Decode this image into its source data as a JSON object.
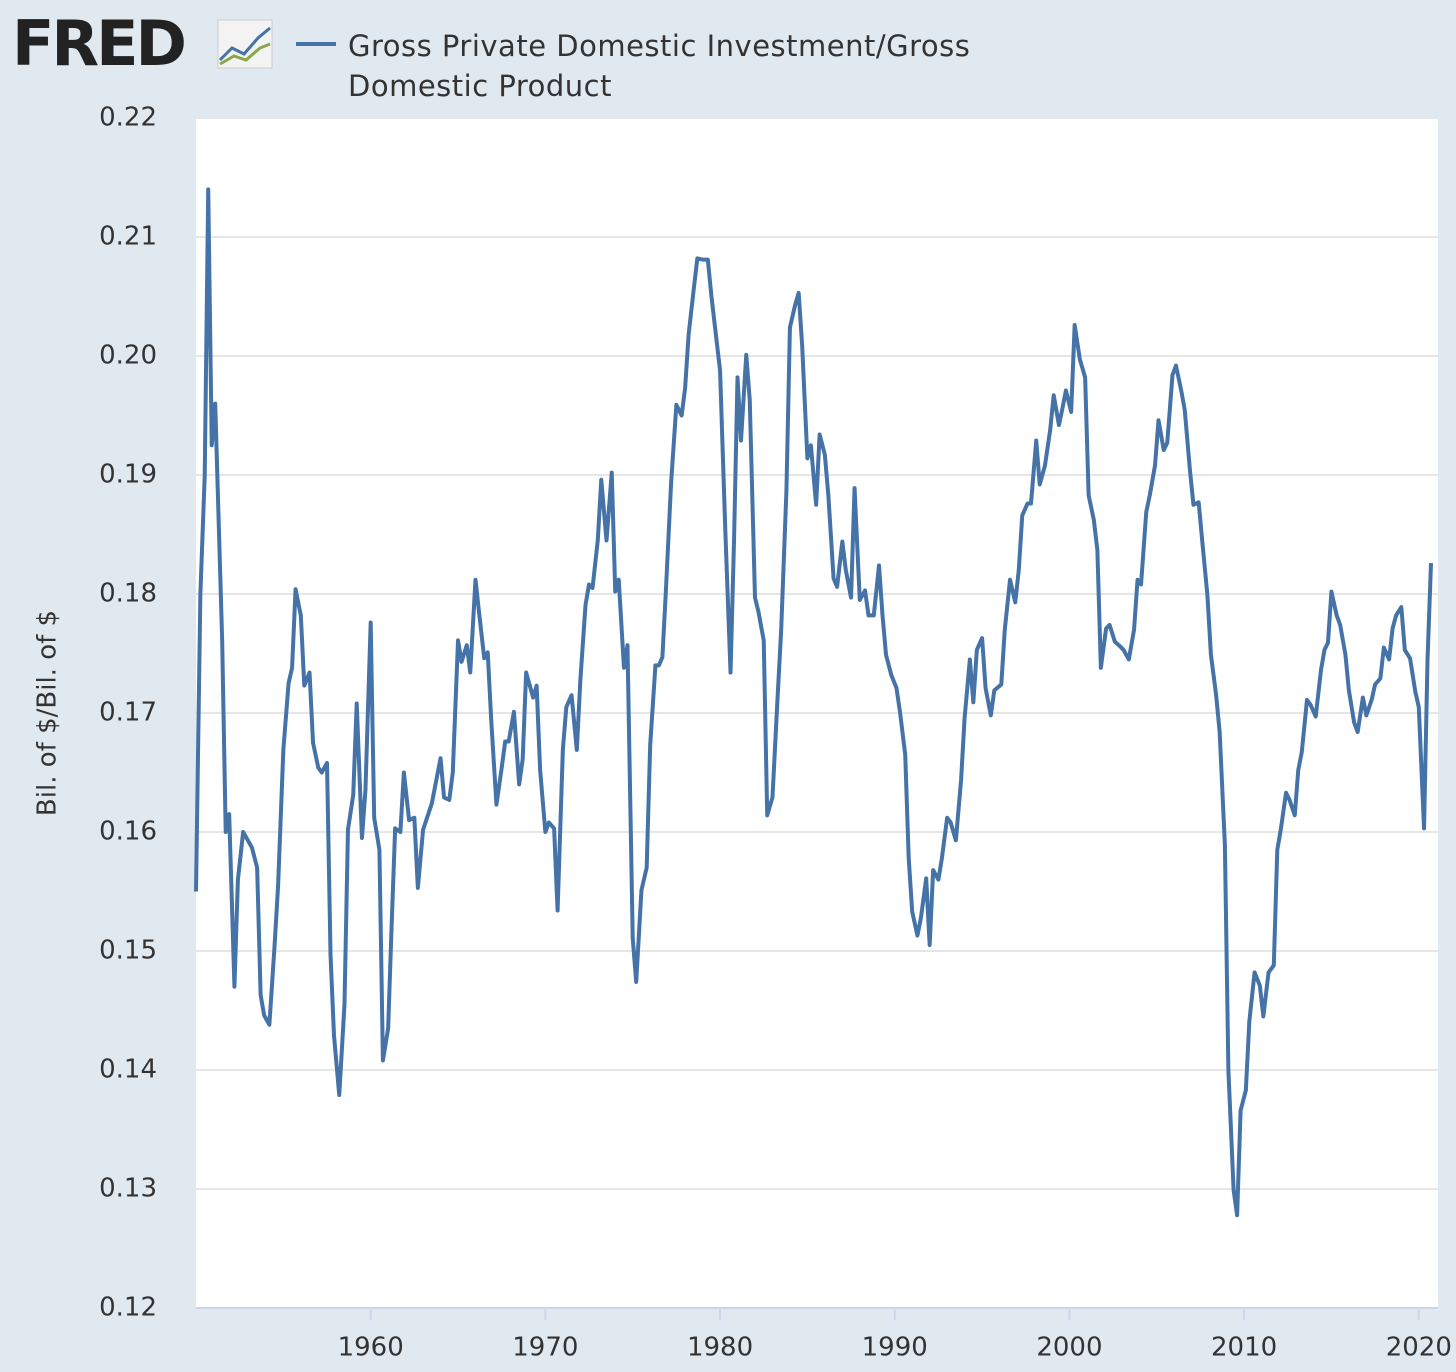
{
  "logo": "FRED",
  "chart_data": {
    "type": "line",
    "y_label": "Bil. of $/Bil. of $",
    "series": [
      {
        "name": "Gross Private Domestic Investment/Gross Domestic Product",
        "color": "#4572a7",
        "x": [
          1950.0,
          1950.25,
          1950.5,
          1950.7,
          1950.9,
          1951.1,
          1951.5,
          1951.7,
          1951.9,
          1952.2,
          1952.4,
          1952.7,
          1953.2,
          1953.5,
          1953.7,
          1953.9,
          1954.2,
          1954.5,
          1954.7,
          1955.0,
          1955.3,
          1955.5,
          1955.7,
          1956.0,
          1956.2,
          1956.5,
          1956.7,
          1957.0,
          1957.2,
          1957.5,
          1957.7,
          1957.9,
          1958.2,
          1958.5,
          1958.7,
          1959.0,
          1959.2,
          1959.5,
          1959.7,
          1960.0,
          1960.2,
          1960.5,
          1960.7,
          1961.0,
          1961.2,
          1961.4,
          1961.7,
          1961.9,
          1962.2,
          1962.5,
          1962.7,
          1963.0,
          1963.5,
          1964.0,
          1964.2,
          1964.5,
          1964.7,
          1965.0,
          1965.2,
          1965.5,
          1965.7,
          1966.0,
          1966.2,
          1966.5,
          1966.7,
          1966.9,
          1967.2,
          1967.5,
          1967.7,
          1967.9,
          1968.2,
          1968.5,
          1968.7,
          1968.9,
          1969.3,
          1969.5,
          1969.7,
          1970.0,
          1970.2,
          1970.5,
          1970.7,
          1971.0,
          1971.2,
          1971.5,
          1971.8,
          1972.0,
          1972.3,
          1972.5,
          1972.7,
          1973.0,
          1973.2,
          1973.5,
          1973.8,
          1974.0,
          1974.2,
          1974.5,
          1974.7,
          1975.0,
          1975.2,
          1975.5,
          1975.8,
          1976.0,
          1976.3,
          1976.5,
          1976.7,
          1976.9,
          1977.2,
          1977.5,
          1977.8,
          1978.0,
          1978.2,
          1978.5,
          1978.7,
          1979.0,
          1979.3,
          1979.5,
          1979.8,
          1980.0,
          1980.3,
          1980.6,
          1980.8,
          1981.0,
          1981.2,
          1981.5,
          1981.7,
          1982.0,
          1982.2,
          1982.5,
          1982.7,
          1983.0,
          1983.3,
          1983.5,
          1983.8,
          1984.0,
          1984.3,
          1984.5,
          1984.7,
          1985.0,
          1985.2,
          1985.5,
          1985.7,
          1986.0,
          1986.2,
          1986.5,
          1986.7,
          1987.0,
          1987.2,
          1987.5,
          1987.7,
          1988.0,
          1988.3,
          1988.5,
          1988.8,
          1989.1,
          1989.3,
          1989.5,
          1989.8,
          1990.1,
          1990.3,
          1990.6,
          1990.8,
          1991.0,
          1991.3,
          1991.5,
          1991.8,
          1992.0,
          1992.2,
          1992.5,
          1992.7,
          1993.0,
          1993.2,
          1993.5,
          1993.8,
          1994.0,
          1994.3,
          1994.5,
          1994.7,
          1995.0,
          1995.2,
          1995.5,
          1995.7,
          1996.1,
          1996.3,
          1996.6,
          1996.9,
          1997.1,
          1997.3,
          1997.6,
          1997.8,
          1998.1,
          1998.3,
          1998.6,
          1998.9,
          1999.1,
          1999.4,
          1999.6,
          1999.8,
          2000.1,
          2000.3,
          2000.6,
          2000.9,
          2001.1,
          2001.4,
          2001.6,
          2001.8,
          2002.1,
          2002.3,
          2002.6,
          2002.9,
          2003.1,
          2003.4,
          2003.7,
          2003.9,
          2004.1,
          2004.4,
          2004.6,
          2004.9,
          2005.1,
          2005.4,
          2005.6,
          2005.9,
          2006.1,
          2006.4,
          2006.6,
          2006.9,
          2007.1,
          2007.4,
          2007.6,
          2007.9,
          2008.1,
          2008.4,
          2008.6,
          2008.9,
          2009.1,
          2009.4,
          2009.6,
          2009.8,
          2010.1,
          2010.3,
          2010.6,
          2010.9,
          2011.1,
          2011.4,
          2011.7,
          2011.9,
          2012.1,
          2012.4,
          2012.6,
          2012.9,
          2013.1,
          2013.3,
          2013.6,
          2013.8,
          2014.1,
          2014.4,
          2014.6,
          2014.8,
          2015.0,
          2015.3,
          2015.5,
          2015.8,
          2016.0,
          2016.3,
          2016.5,
          2016.8,
          2017.0,
          2017.3,
          2017.5,
          2017.8,
          2018.0,
          2018.3,
          2018.5,
          2018.7,
          2019.0,
          2019.2,
          2019.5,
          2019.8,
          2020.0,
          2020.3,
          2020.5,
          2020.7
        ],
        "values": [
          0.155,
          0.18,
          0.19,
          0.214,
          0.1925,
          0.196,
          0.176,
          0.16,
          0.1615,
          0.147,
          0.156,
          0.16,
          0.1587,
          0.157,
          0.1463,
          0.1446,
          0.1438,
          0.1505,
          0.1555,
          0.1669,
          0.1725,
          0.1738,
          0.1804,
          0.1782,
          0.1723,
          0.1734,
          0.1675,
          0.1654,
          0.165,
          0.1658,
          0.1497,
          0.1429,
          0.1379,
          0.1455,
          0.1602,
          0.1631,
          0.1708,
          0.1595,
          0.1635,
          0.1776,
          0.1612,
          0.1585,
          0.1408,
          0.1435,
          0.1522,
          0.1603,
          0.16,
          0.165,
          0.161,
          0.1612,
          0.1553,
          0.1602,
          0.1624,
          0.1662,
          0.1629,
          0.1627,
          0.165,
          0.1761,
          0.1743,
          0.1757,
          0.1734,
          0.1812,
          0.1785,
          0.1746,
          0.1751,
          0.1694,
          0.1623,
          0.1654,
          0.1676,
          0.1676,
          0.1701,
          0.164,
          0.1661,
          0.1734,
          0.1713,
          0.1723,
          0.1652,
          0.16,
          0.1608,
          0.1603,
          0.1534,
          0.1669,
          0.1705,
          0.1715,
          0.1669,
          0.1727,
          0.1791,
          0.1808,
          0.1805,
          0.1845,
          0.1896,
          0.1845,
          0.1902,
          0.1802,
          0.1812,
          0.1738,
          0.1757,
          0.1511,
          0.1474,
          0.1551,
          0.157,
          0.1673,
          0.174,
          0.174,
          0.1747,
          0.1803,
          0.1894,
          0.1959,
          0.195,
          0.1973,
          0.2018,
          0.2057,
          0.2082,
          0.2081,
          0.2081,
          0.2051,
          0.2013,
          0.1988,
          0.1854,
          0.1734,
          0.1845,
          0.1982,
          0.1929,
          0.2001,
          0.1963,
          0.1797,
          0.1785,
          0.1761,
          0.1614,
          0.1629,
          0.1715,
          0.177,
          0.1887,
          0.2024,
          0.2043,
          0.2053,
          0.2009,
          0.1914,
          0.1925,
          0.1875,
          0.1934,
          0.1917,
          0.1883,
          0.1813,
          0.1806,
          0.1844,
          0.182,
          0.1797,
          0.1889,
          0.1795,
          0.1803,
          0.1782,
          0.1782,
          0.1824,
          0.1782,
          0.1749,
          0.1732,
          0.1721,
          0.1701,
          0.1665,
          0.1578,
          0.1533,
          0.1513,
          0.1528,
          0.1561,
          0.1505,
          0.1568,
          0.156,
          0.1578,
          0.1612,
          0.1608,
          0.1593,
          0.1644,
          0.1696,
          0.1745,
          0.1709,
          0.1753,
          0.1763,
          0.1721,
          0.1698,
          0.1719,
          0.1724,
          0.177,
          0.1812,
          0.1793,
          0.182,
          0.1866,
          0.1876,
          0.1876,
          0.1929,
          0.1892,
          0.1908,
          0.1938,
          0.1967,
          0.1942,
          0.1956,
          0.1971,
          0.1953,
          0.2026,
          0.1997,
          0.1982,
          0.1883,
          0.1862,
          0.1837,
          0.1738,
          0.1771,
          0.1774,
          0.176,
          0.1756,
          0.1753,
          0.1745,
          0.177,
          0.1812,
          0.1808,
          0.1869,
          0.1883,
          0.1908,
          0.1946,
          0.1921,
          0.1927,
          0.1984,
          0.1992,
          0.1971,
          0.1955,
          0.1904,
          0.1875,
          0.1877,
          0.1845,
          0.1799,
          0.1749,
          0.1715,
          0.1684,
          0.1589,
          0.14,
          0.1299,
          0.1278,
          0.1366,
          0.1383,
          0.1441,
          0.1482,
          0.1471,
          0.1445,
          0.1482,
          0.1488,
          0.1585,
          0.1602,
          0.1633,
          0.1627,
          0.1614,
          0.1652,
          0.1667,
          0.1711,
          0.1707,
          0.1697,
          0.1736,
          0.1753,
          0.1759,
          0.1802,
          0.1782,
          0.1774,
          0.1749,
          0.1719,
          0.1692,
          0.1684,
          0.1713,
          0.1698,
          0.1711,
          0.1724,
          0.1729,
          0.1755,
          0.1745,
          0.1771,
          0.1782,
          0.1789,
          0.1753,
          0.1746,
          0.1718,
          0.1705,
          0.1603,
          0.1745,
          0.1826
        ]
      }
    ],
    "xlim": [
      1950,
      2021.1
    ],
    "xticks": [
      1960,
      1970,
      1980,
      1990,
      2000,
      2010,
      2020
    ],
    "ylim": [
      0.12,
      0.22
    ],
    "yticks": [
      0.12,
      0.13,
      0.14,
      0.15,
      0.16,
      0.17,
      0.18,
      0.19,
      {
        "value": 0.2,
        "label": "0.20"
      },
      0.21,
      0.22
    ],
    "grid": true
  }
}
